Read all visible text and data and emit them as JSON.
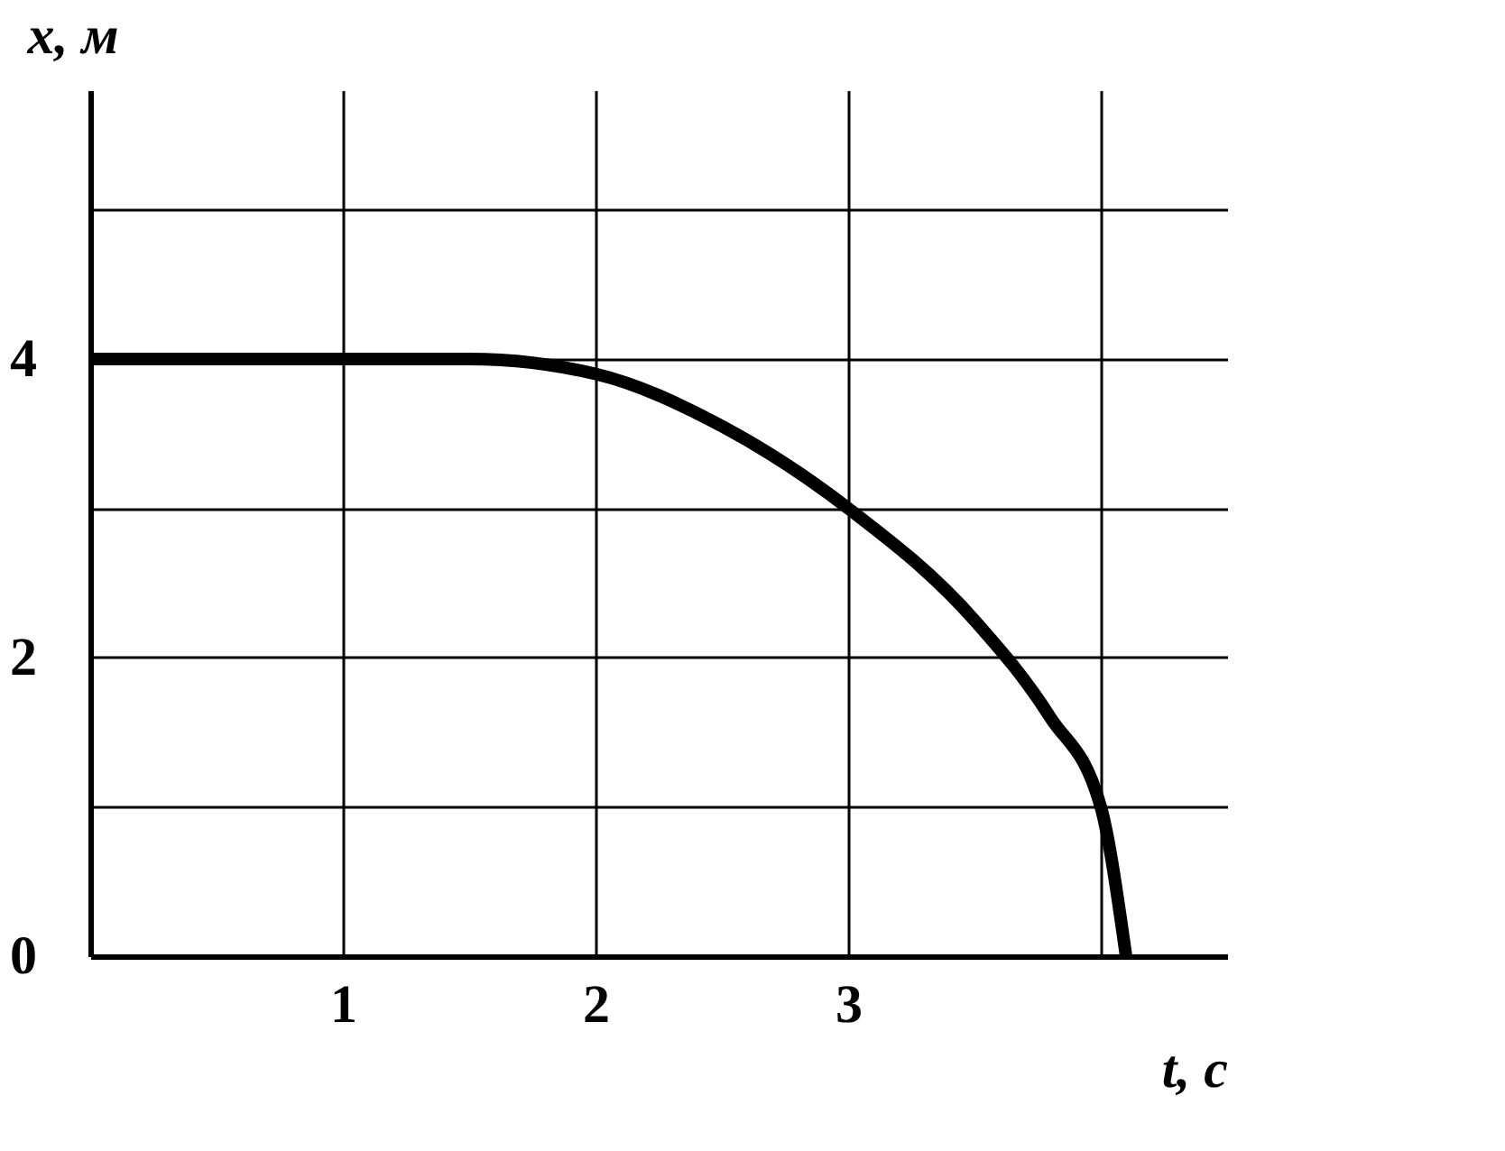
{
  "chart_data": {
    "type": "line",
    "xlabel": "t, с",
    "ylabel": "x, м",
    "x": [
      0,
      1,
      1.5,
      2,
      2.5,
      3,
      3.5,
      3.8,
      4,
      4.1
    ],
    "series": [
      {
        "color": "#000000",
        "values": [
          4,
          4,
          4,
          3.9,
          3.55,
          3,
          2.25,
          1.6,
          1,
          0
        ]
      }
    ],
    "xlim": [
      0,
      4.5
    ],
    "ylim": [
      0,
      5.8
    ],
    "xticks": [
      1,
      2,
      3,
      {
        "value": 4,
        "label": null
      }
    ],
    "yticks": [
      0,
      {
        "value": 1,
        "label": null
      },
      2,
      {
        "value": 3,
        "label": null
      },
      4,
      {
        "value": 5,
        "label": null
      }
    ],
    "grid": true,
    "marker": "none",
    "line_style": "solid"
  }
}
